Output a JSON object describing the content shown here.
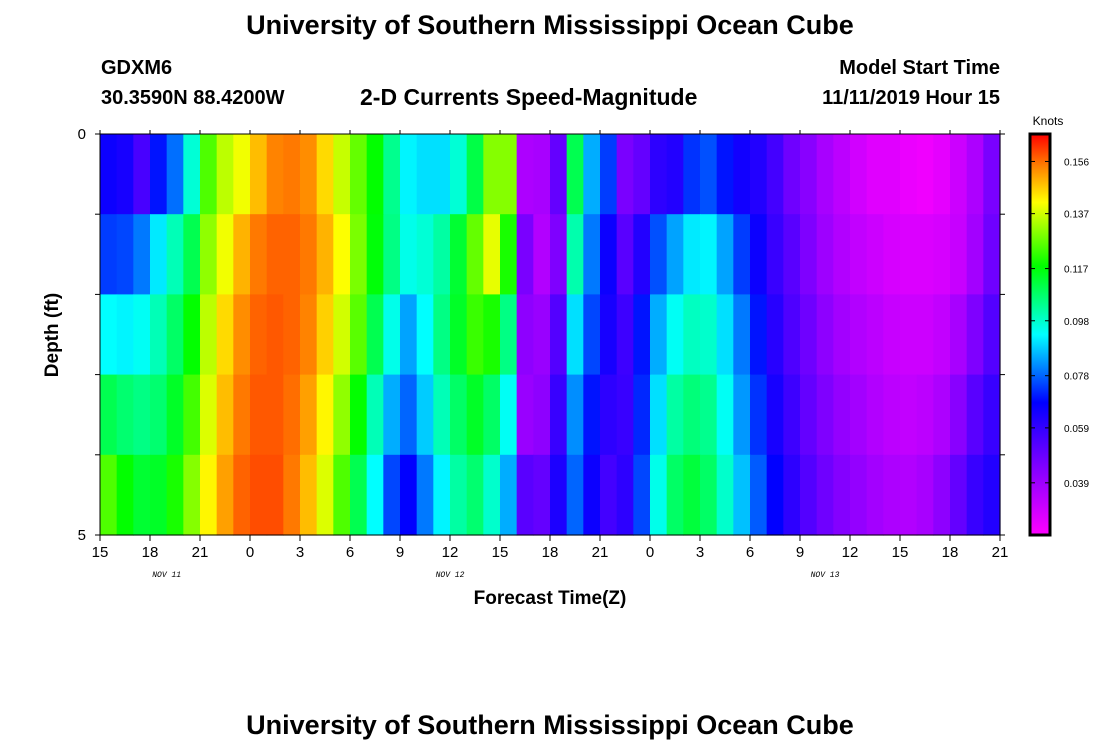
{
  "header": {
    "title": "University of Southern Mississippi Ocean Cube",
    "station": "GDXM6",
    "coords": "30.3590N 88.4200W",
    "subtitle": "2-D Currents Speed-Magnitude",
    "model_start_label": "Model Start Time",
    "model_start_value": "11/11/2019 Hour 15"
  },
  "footer": {
    "title": "University of Southern Mississippi Ocean Cube"
  },
  "chart_data": {
    "type": "heatmap",
    "title": "2-D Currents Speed-Magnitude",
    "xlabel": "Forecast Time(Z)",
    "ylabel": "Depth (ft)",
    "x_range_hours": [
      0,
      54
    ],
    "y_range_ft": [
      0,
      5
    ],
    "x_tick_labels": [
      "15",
      "18",
      "21",
      "0",
      "3",
      "6",
      "9",
      "12",
      "15",
      "18",
      "21",
      "0",
      "3",
      "6",
      "9",
      "12",
      "15",
      "18",
      "21"
    ],
    "y_tick_labels": [
      "0",
      "5"
    ],
    "date_labels": [
      {
        "text": "NOV 11",
        "hour": 4
      },
      {
        "text": "NOV 12",
        "hour": 21
      },
      {
        "text": "NOV 13",
        "hour": 43.5
      }
    ],
    "colorbar": {
      "unit": "Knots",
      "min": 0.02,
      "max": 0.166,
      "ticks": [
        "0.156",
        "0.137",
        "0.117",
        "0.098",
        "0.078",
        "0.059",
        "0.039"
      ]
    },
    "layers": 5,
    "values_knots": [
      [
        0.066,
        0.064,
        0.055,
        0.07,
        0.079,
        0.097,
        0.125,
        0.135,
        0.14,
        0.148,
        0.154,
        0.155,
        0.153,
        0.145,
        0.136,
        0.127,
        0.118,
        0.104,
        0.092,
        0.09,
        0.09,
        0.097,
        0.111,
        0.13,
        0.13,
        0.036,
        0.037,
        0.05,
        0.11,
        0.085,
        0.074,
        0.046,
        0.05,
        0.06,
        0.062,
        0.073,
        0.076,
        0.07,
        0.065,
        0.062,
        0.056,
        0.048,
        0.043,
        0.037,
        0.033,
        0.029,
        0.026,
        0.026,
        0.024,
        0.023,
        0.025,
        0.03,
        0.036,
        0.046
      ],
      [
        0.074,
        0.075,
        0.08,
        0.091,
        0.1,
        0.11,
        0.131,
        0.14,
        0.149,
        0.155,
        0.157,
        0.157,
        0.155,
        0.149,
        0.141,
        0.129,
        0.117,
        0.105,
        0.095,
        0.097,
        0.102,
        0.113,
        0.127,
        0.139,
        0.12,
        0.046,
        0.035,
        0.045,
        0.101,
        0.08,
        0.066,
        0.052,
        0.062,
        0.076,
        0.084,
        0.091,
        0.092,
        0.084,
        0.074,
        0.066,
        0.058,
        0.052,
        0.045,
        0.039,
        0.035,
        0.032,
        0.03,
        0.028,
        0.027,
        0.027,
        0.028,
        0.031,
        0.038,
        0.048
      ],
      [
        0.093,
        0.092,
        0.094,
        0.1,
        0.108,
        0.118,
        0.135,
        0.145,
        0.153,
        0.157,
        0.158,
        0.157,
        0.154,
        0.146,
        0.137,
        0.126,
        0.11,
        0.095,
        0.084,
        0.093,
        0.105,
        0.114,
        0.123,
        0.12,
        0.105,
        0.042,
        0.04,
        0.053,
        0.09,
        0.075,
        0.064,
        0.057,
        0.07,
        0.085,
        0.094,
        0.099,
        0.098,
        0.09,
        0.08,
        0.07,
        0.061,
        0.054,
        0.048,
        0.042,
        0.038,
        0.035,
        0.033,
        0.031,
        0.03,
        0.03,
        0.032,
        0.037,
        0.045,
        0.053
      ],
      [
        0.11,
        0.107,
        0.105,
        0.107,
        0.114,
        0.124,
        0.138,
        0.148,
        0.155,
        0.158,
        0.158,
        0.156,
        0.151,
        0.142,
        0.131,
        0.118,
        0.1,
        0.085,
        0.078,
        0.088,
        0.1,
        0.108,
        0.114,
        0.108,
        0.094,
        0.04,
        0.042,
        0.058,
        0.082,
        0.07,
        0.06,
        0.058,
        0.072,
        0.09,
        0.102,
        0.106,
        0.104,
        0.094,
        0.083,
        0.073,
        0.064,
        0.057,
        0.05,
        0.045,
        0.041,
        0.038,
        0.035,
        0.033,
        0.032,
        0.033,
        0.036,
        0.043,
        0.052,
        0.058
      ],
      [
        0.125,
        0.118,
        0.113,
        0.114,
        0.12,
        0.13,
        0.142,
        0.151,
        0.157,
        0.159,
        0.159,
        0.155,
        0.148,
        0.138,
        0.125,
        0.11,
        0.093,
        0.075,
        0.068,
        0.08,
        0.092,
        0.102,
        0.107,
        0.098,
        0.085,
        0.052,
        0.05,
        0.063,
        0.078,
        0.066,
        0.056,
        0.06,
        0.075,
        0.095,
        0.108,
        0.112,
        0.108,
        0.098,
        0.087,
        0.077,
        0.068,
        0.06,
        0.053,
        0.048,
        0.044,
        0.041,
        0.038,
        0.036,
        0.035,
        0.037,
        0.042,
        0.05,
        0.058,
        0.062
      ]
    ]
  }
}
